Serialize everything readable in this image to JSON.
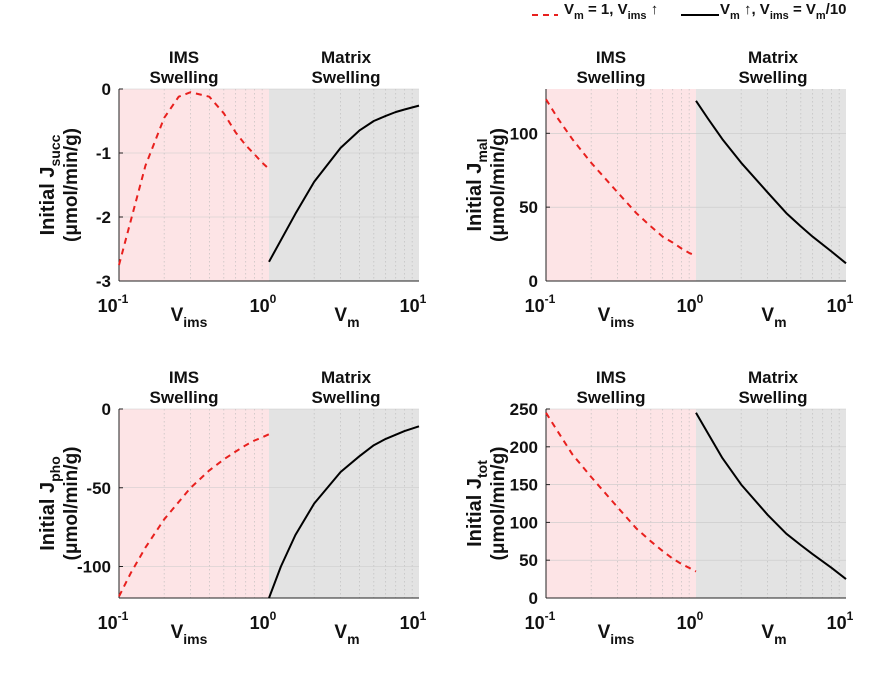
{
  "legend": {
    "position": "top-right",
    "entries": [
      {
        "label": "V_m = 1, V_ims ↑",
        "style": "dashed",
        "color": "#e8201e"
      },
      {
        "label": "V_m ↑, V_ims = V_m/10",
        "style": "solid",
        "color": "#000000"
      }
    ]
  },
  "colors": {
    "ims_region": "#fde4e6",
    "matrix_region": "#e3e3e3",
    "dashed_series": "#e8201e",
    "solid_series": "#000000"
  },
  "region_labels": {
    "ims": [
      "IMS",
      "Swelling"
    ],
    "matrix": [
      "Matrix",
      "Swelling"
    ]
  },
  "axis_labels": {
    "x_left": {
      "main": "V",
      "sub": "ims"
    },
    "x_right": {
      "main": "V",
      "sub": "m"
    }
  },
  "chart_data": [
    {
      "type": "line",
      "ylabel": {
        "main": "Initial J",
        "sub": "succ",
        "unit": "(μmol/min/g)"
      },
      "ylim": [
        -3,
        0
      ],
      "yticks": [
        0,
        -1,
        -2,
        -3
      ],
      "ytick_labels": [
        "0",
        "-1",
        "-2",
        "-3"
      ],
      "xticks_labels": [
        "10",
        "10",
        "10"
      ],
      "xticks_exponents": [
        "-1",
        "0",
        "1"
      ],
      "grid": true,
      "x_scale": "log",
      "ims_series": {
        "x": [
          0.1,
          0.12,
          0.15,
          0.2,
          0.25,
          0.3,
          0.4,
          0.5,
          0.6,
          0.7,
          0.8,
          0.9,
          1.0
        ],
        "y": [
          -2.75,
          -2.05,
          -1.2,
          -0.45,
          -0.12,
          -0.05,
          -0.12,
          -0.38,
          -0.68,
          -0.88,
          -1.02,
          -1.15,
          -1.25
        ]
      },
      "matrix_series": {
        "x": [
          1,
          1.5,
          2,
          3,
          4,
          5,
          6,
          7,
          8,
          10
        ],
        "y": [
          -2.7,
          -1.95,
          -1.45,
          -0.92,
          -0.65,
          -0.5,
          -0.42,
          -0.36,
          -0.32,
          -0.26
        ]
      }
    },
    {
      "type": "line",
      "ylabel": {
        "main": "Initial J",
        "sub": "mal",
        "unit": "(μmol/min/g)"
      },
      "ylim": [
        0,
        130
      ],
      "yticks": [
        0,
        50,
        100
      ],
      "ytick_labels": [
        "0",
        "50",
        "100"
      ],
      "xticks_labels": [
        "10",
        "10",
        "10"
      ],
      "xticks_exponents": [
        "-1",
        "0",
        "1"
      ],
      "grid": true,
      "x_scale": "log",
      "ims_series": {
        "x": [
          0.1,
          0.12,
          0.15,
          0.2,
          0.3,
          0.4,
          0.5,
          0.6,
          0.7,
          0.8,
          0.9,
          1.0
        ],
        "y": [
          123,
          110,
          96,
          80,
          60,
          46,
          37,
          30,
          26,
          22,
          19,
          17
        ]
      },
      "matrix_series": {
        "x": [
          1,
          1.2,
          1.5,
          2,
          3,
          4,
          5,
          6,
          8,
          10
        ],
        "y": [
          122,
          110,
          96,
          80,
          60,
          46,
          37,
          30,
          20,
          12
        ]
      }
    },
    {
      "type": "line",
      "ylabel": {
        "main": "Initial J",
        "sub": "pho",
        "unit": "(μmol/min/g)"
      },
      "ylim": [
        -120,
        0
      ],
      "yticks": [
        0,
        -50,
        -100
      ],
      "ytick_labels": [
        "0",
        "-50",
        "-100"
      ],
      "xticks_labels": [
        "10",
        "10",
        "10"
      ],
      "xticks_exponents": [
        "-1",
        "0",
        "1"
      ],
      "grid": true,
      "x_scale": "log",
      "ims_series": {
        "x": [
          0.1,
          0.12,
          0.15,
          0.2,
          0.3,
          0.4,
          0.5,
          0.6,
          0.7,
          0.8,
          0.9,
          1.0
        ],
        "y": [
          -119,
          -104,
          -88,
          -70,
          -50,
          -39,
          -32,
          -27,
          -23,
          -20,
          -18,
          -16
        ]
      },
      "matrix_series": {
        "x": [
          1,
          1.2,
          1.5,
          2,
          3,
          4,
          5,
          6,
          8,
          10
        ],
        "y": [
          -120,
          -100,
          -80,
          -60,
          -40,
          -30,
          -23,
          -19,
          -14,
          -11
        ]
      }
    },
    {
      "type": "line",
      "ylabel": {
        "main": "Initial J",
        "sub": "tot",
        "unit": "(μmol/min/g)"
      },
      "ylim": [
        0,
        250
      ],
      "yticks": [
        0,
        50,
        100,
        150,
        200,
        250
      ],
      "ytick_labels": [
        "0",
        "50",
        "100",
        "150",
        "200",
        "250"
      ],
      "xticks_labels": [
        "10",
        "10",
        "10"
      ],
      "xticks_exponents": [
        "-1",
        "0",
        "1"
      ],
      "grid": true,
      "x_scale": "log",
      "ims_series": {
        "x": [
          0.1,
          0.12,
          0.15,
          0.2,
          0.3,
          0.4,
          0.5,
          0.6,
          0.7,
          0.8,
          0.9,
          1.0
        ],
        "y": [
          245,
          220,
          190,
          160,
          120,
          92,
          75,
          62,
          52,
          45,
          40,
          35
        ]
      },
      "matrix_series": {
        "x": [
          1,
          1.2,
          1.5,
          2,
          3,
          4,
          5,
          6,
          8,
          10
        ],
        "y": [
          245,
          218,
          185,
          150,
          110,
          85,
          70,
          58,
          40,
          25
        ]
      }
    }
  ]
}
